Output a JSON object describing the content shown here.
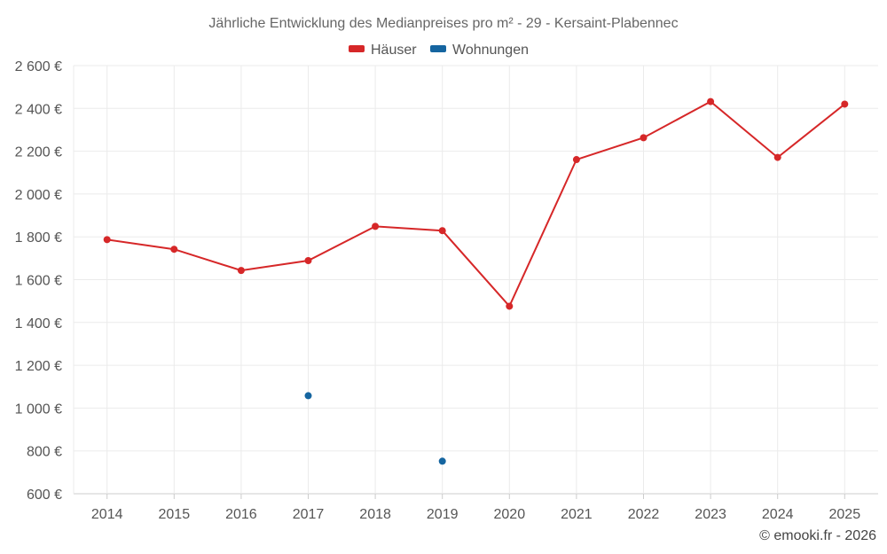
{
  "colors": {
    "haeuser": "#d62728",
    "wohnungen": "#1565a0",
    "grid": "#ebebeb",
    "axis": "#cccccc"
  },
  "copyright": "© emooki.fr - 2026",
  "chart_data": {
    "type": "line",
    "title": "Jährliche Entwicklung des Medianpreises pro m² - 29 - Kersaint-Plabennec",
    "xlabel": "",
    "ylabel": "",
    "x": [
      "2014",
      "2015",
      "2016",
      "2017",
      "2018",
      "2019",
      "2020",
      "2021",
      "2022",
      "2023",
      "2024",
      "2025"
    ],
    "ylim": [
      600,
      2600
    ],
    "yticks": [
      600,
      800,
      1000,
      1200,
      1400,
      1600,
      1800,
      2000,
      2200,
      2400,
      2600
    ],
    "ytick_labels": [
      "600 €",
      "800 €",
      "1 000 €",
      "1 200 €",
      "1 400 €",
      "1 600 €",
      "1 800 €",
      "2 000 €",
      "2 200 €",
      "2 400 €",
      "2 600 €"
    ],
    "grid": true,
    "legend_position": "top-center",
    "series": [
      {
        "name": "Häuser",
        "color": "#d62728",
        "values": [
          1787,
          1742,
          1643,
          1689,
          1849,
          1829,
          1476,
          2161,
          2263,
          2432,
          2171,
          2420
        ]
      },
      {
        "name": "Wohnungen",
        "color": "#1565a0",
        "values": [
          null,
          null,
          null,
          1058,
          null,
          752,
          null,
          null,
          null,
          null,
          null,
          null
        ]
      }
    ]
  }
}
